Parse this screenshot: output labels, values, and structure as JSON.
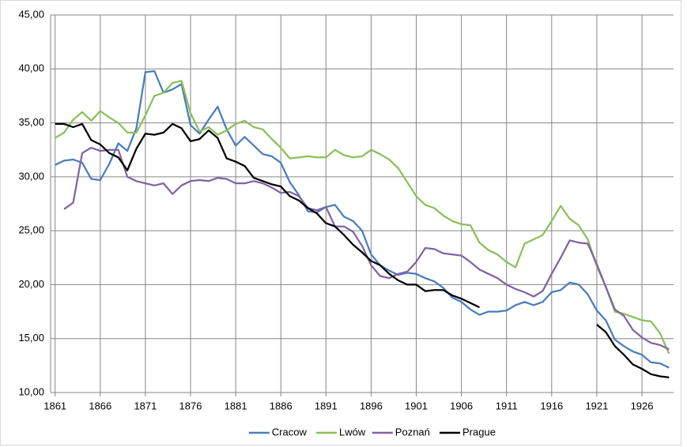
{
  "chart_data": {
    "type": "line",
    "x": [
      1861,
      1862,
      1863,
      1864,
      1865,
      1866,
      1867,
      1868,
      1869,
      1870,
      1871,
      1872,
      1873,
      1874,
      1875,
      1876,
      1877,
      1878,
      1879,
      1880,
      1881,
      1882,
      1883,
      1884,
      1885,
      1886,
      1887,
      1888,
      1889,
      1890,
      1891,
      1892,
      1893,
      1894,
      1895,
      1896,
      1897,
      1898,
      1899,
      1900,
      1901,
      1902,
      1903,
      1904,
      1905,
      1906,
      1907,
      1908,
      1909,
      1910,
      1911,
      1912,
      1913,
      1914,
      1915,
      1916,
      1917,
      1918,
      1919,
      1920,
      1921,
      1922,
      1923,
      1924,
      1925,
      1926,
      1927,
      1928,
      1929
    ],
    "xlim": [
      1860.5,
      1929.5
    ],
    "xticks": [
      1861,
      1866,
      1871,
      1876,
      1881,
      1886,
      1891,
      1896,
      1901,
      1906,
      1911,
      1916,
      1921,
      1926
    ],
    "ylim": [
      10,
      45
    ],
    "yticks": [
      {
        "value": 10,
        "label": "10,00"
      },
      {
        "value": 15,
        "label": "15,00"
      },
      {
        "value": 20,
        "label": "20,00"
      },
      {
        "value": 25,
        "label": "25,00"
      },
      {
        "value": 30,
        "label": "30,00"
      },
      {
        "value": 35,
        "label": "35,00"
      },
      {
        "value": 40,
        "label": "40,00"
      },
      {
        "value": 45,
        "label": "45,00"
      }
    ],
    "grid": true,
    "legend": "bottom",
    "series": [
      {
        "name": "Cracow",
        "color": "#4a7ebb",
        "values": [
          31.1,
          31.5,
          31.6,
          31.3,
          29.8,
          29.7,
          31.2,
          33.1,
          32.4,
          34.5,
          39.7,
          39.8,
          37.8,
          38.1,
          38.6,
          34.8,
          34.0,
          35.3,
          36.5,
          34.4,
          32.9,
          33.7,
          32.9,
          32.1,
          31.9,
          31.3,
          29.5,
          28.3,
          26.8,
          26.7,
          27.2,
          27.4,
          26.3,
          25.9,
          25.0,
          22.8,
          21.8,
          21.3,
          20.9,
          21.1,
          21.0,
          20.6,
          20.3,
          19.7,
          18.8,
          18.4,
          17.7,
          17.2,
          17.5,
          17.5,
          17.6,
          18.1,
          18.4,
          18.1,
          18.4,
          19.3,
          19.5,
          20.2,
          20.0,
          19.1,
          17.6,
          16.7,
          14.9,
          14.3,
          13.8,
          13.5,
          12.8,
          12.7,
          12.3
        ]
      },
      {
        "name": "Lwów",
        "color": "#8cbf5a",
        "values": [
          33.6,
          34.1,
          35.3,
          36.0,
          35.2,
          36.1,
          35.5,
          35.0,
          34.1,
          34.1,
          35.7,
          37.5,
          37.8,
          38.7,
          38.9,
          35.9,
          34.2,
          34.6,
          33.9,
          34.3,
          34.9,
          35.2,
          34.6,
          34.4,
          33.5,
          32.7,
          31.7,
          31.8,
          31.9,
          31.8,
          31.8,
          32.5,
          32.0,
          31.8,
          31.9,
          32.5,
          32.1,
          31.6,
          30.8,
          29.5,
          28.2,
          27.4,
          27.1,
          26.4,
          25.9,
          25.6,
          25.5,
          23.9,
          23.2,
          22.8,
          22.1,
          21.6,
          23.8,
          24.2,
          24.6,
          25.9,
          27.3,
          26.1,
          25.5,
          24.2,
          21.7,
          19.8,
          17.5,
          17.3,
          17.0,
          16.7,
          16.6,
          15.5,
          13.6
        ]
      },
      {
        "name": "Poznań",
        "color": "#8064a2",
        "values": [
          null,
          27.0,
          27.6,
          32.2,
          32.7,
          32.4,
          32.5,
          32.5,
          30.0,
          29.6,
          29.4,
          29.2,
          29.4,
          28.4,
          29.2,
          29.6,
          29.7,
          29.6,
          29.9,
          29.8,
          29.4,
          29.4,
          29.6,
          29.4,
          29.0,
          28.5,
          28.6,
          28.2,
          27.1,
          26.9,
          27.2,
          25.4,
          25.4,
          24.9,
          23.6,
          21.8,
          20.8,
          20.6,
          21.0,
          21.2,
          22.1,
          23.4,
          23.3,
          22.9,
          22.8,
          22.7,
          22.1,
          21.4,
          21.0,
          20.6,
          20.0,
          19.6,
          19.3,
          18.9,
          19.4,
          21.0,
          22.5,
          24.1,
          23.9,
          23.8,
          21.9,
          19.8,
          17.7,
          17.1,
          15.8,
          15.1,
          14.6,
          14.4,
          14.0
        ]
      },
      {
        "name": "Prague",
        "color": "#000000",
        "values": [
          34.9,
          34.9,
          34.6,
          34.9,
          33.4,
          33.0,
          32.2,
          31.8,
          30.6,
          32.6,
          34.0,
          33.9,
          34.1,
          34.9,
          34.5,
          33.3,
          33.5,
          34.3,
          33.6,
          31.7,
          31.4,
          31.0,
          29.9,
          29.6,
          29.3,
          29.1,
          28.2,
          27.8,
          27.1,
          26.6,
          25.7,
          25.4,
          24.6,
          23.7,
          23.0,
          22.2,
          21.8,
          21.0,
          20.4,
          20.0,
          20.0,
          19.4,
          19.5,
          19.5,
          19.0,
          18.7,
          18.3,
          17.9,
          null,
          null,
          null,
          null,
          null,
          null,
          null,
          null,
          null,
          null,
          null,
          null,
          16.3,
          15.6,
          14.3,
          13.5,
          12.6,
          12.2,
          11.7,
          11.5,
          11.4
        ]
      }
    ]
  }
}
